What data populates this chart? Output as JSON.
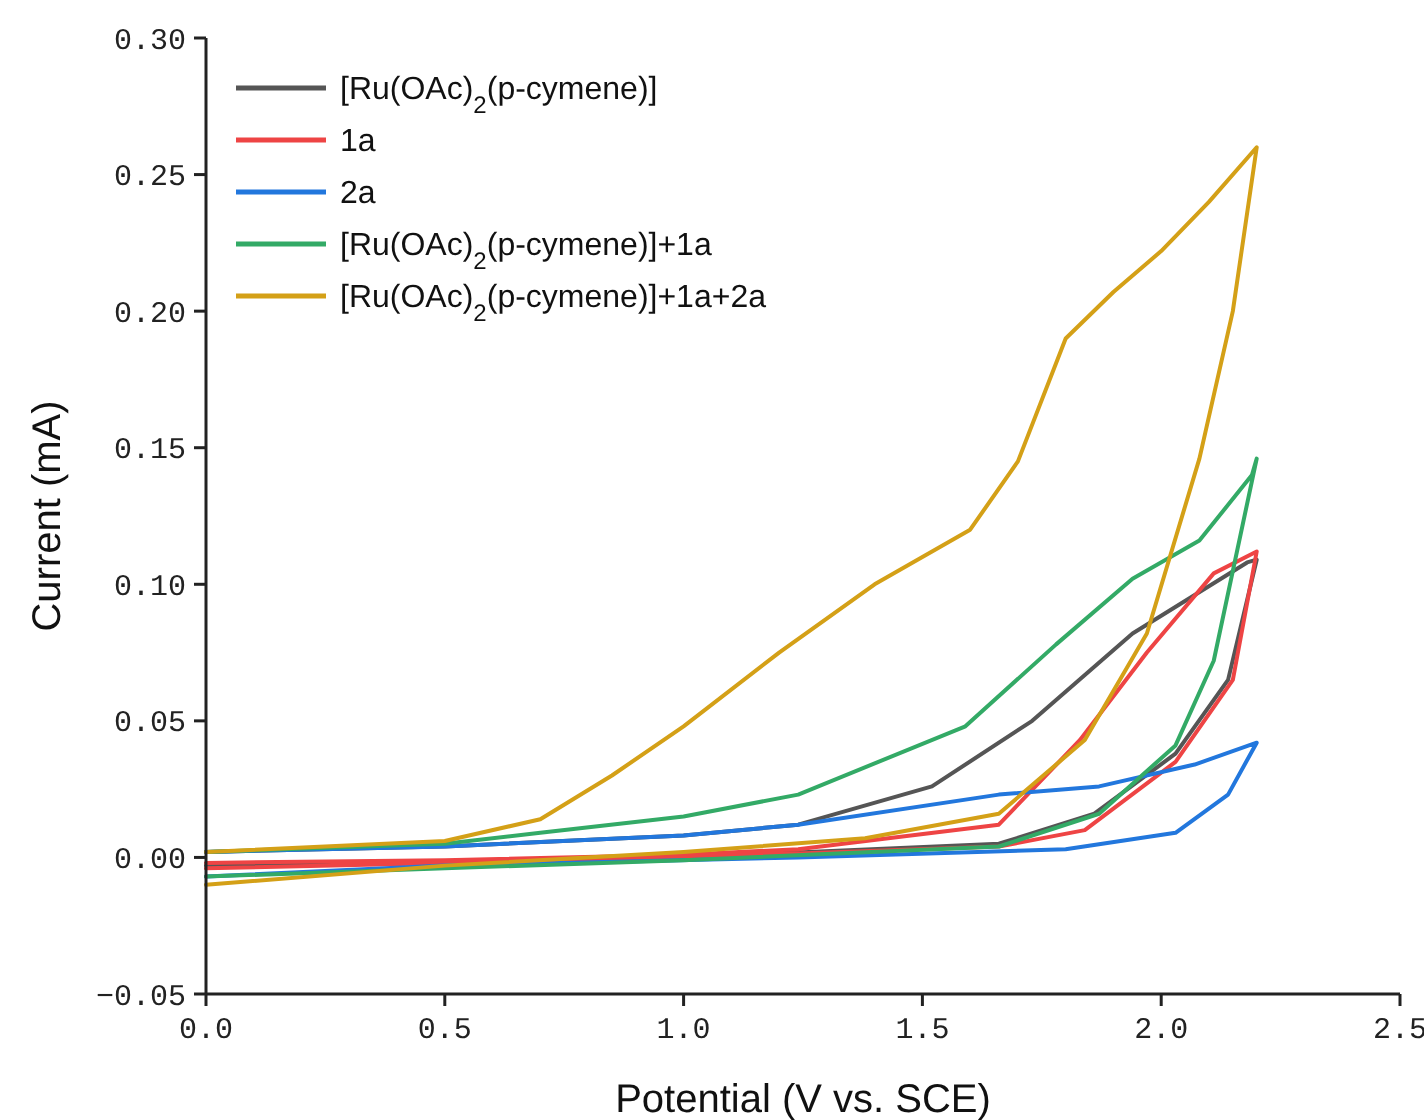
{
  "chart_data": {
    "type": "line",
    "xlabel": "Potential (V vs. SCE)",
    "ylabel": "Current (mA)",
    "xlim": [
      0,
      2.5
    ],
    "ylim": [
      -0.05,
      0.3
    ],
    "xticks": [
      {
        "value": 0,
        "label": "0.0"
      },
      0.5,
      {
        "value": 1,
        "label": "1.0"
      },
      1.5,
      {
        "value": 2,
        "label": "2.0"
      },
      2.5
    ],
    "yticks": [
      {
        "value": -0.05,
        "label": "−0.05"
      },
      {
        "value": 0,
        "label": "0.00"
      },
      0.05,
      {
        "value": 0.1,
        "label": "0.10"
      },
      0.15,
      {
        "value": 0.2,
        "label": "0.20"
      },
      0.25,
      {
        "value": 0.3,
        "label": "0.30"
      }
    ],
    "legend": "top left",
    "marker": "none",
    "line_style": "solid",
    "grid": false,
    "series": [
      {
        "name": "[Ru(OAc)$_{2}$(p-cymene)]",
        "color": "#555555",
        "x": [
          0,
          0.5,
          1.0,
          1.24,
          1.52,
          1.73,
          1.94,
          2.18,
          2.2,
          2.14,
          2.03,
          1.86,
          1.66,
          1.0,
          0.5,
          0
        ],
        "values": [
          0.002,
          0.004,
          0.008,
          0.012,
          0.026,
          0.05,
          0.082,
          0.108,
          0.109,
          0.065,
          0.038,
          0.016,
          0.005,
          0.0,
          -0.002,
          -0.003
        ]
      },
      {
        "name": "1a",
        "color": "#ee4444",
        "x": [
          0,
          0.5,
          1.0,
          1.24,
          1.66,
          1.83,
          1.97,
          2.11,
          2.2,
          2.15,
          2.03,
          1.84,
          1.66,
          1.0,
          0.5,
          0
        ],
        "values": [
          -0.002,
          -0.001,
          0.001,
          0.003,
          0.012,
          0.043,
          0.075,
          0.104,
          0.112,
          0.065,
          0.035,
          0.01,
          0.004,
          0.0,
          -0.002,
          -0.004
        ]
      },
      {
        "name": "2a",
        "color": "#2277dd",
        "x": [
          0,
          0.5,
          1.0,
          1.24,
          1.66,
          1.87,
          2.07,
          2.2,
          2.14,
          2.03,
          1.8,
          1.24,
          0.5,
          0
        ],
        "values": [
          0.002,
          0.004,
          0.008,
          0.012,
          0.023,
          0.026,
          0.034,
          0.042,
          0.023,
          0.009,
          0.003,
          0.0,
          -0.003,
          -0.007
        ]
      },
      {
        "name": "[Ru(OAc)$_{2}$(p-cymene)]+1a",
        "color": "#33aa66",
        "x": [
          0,
          0.5,
          0.7,
          1.0,
          1.24,
          1.59,
          1.78,
          1.94,
          2.08,
          2.19,
          2.2,
          2.11,
          2.03,
          1.87,
          1.66,
          1.0,
          0.5,
          0
        ],
        "values": [
          0.002,
          0.005,
          0.009,
          0.015,
          0.023,
          0.048,
          0.078,
          0.102,
          0.116,
          0.14,
          0.146,
          0.072,
          0.041,
          0.016,
          0.004,
          -0.001,
          -0.004,
          -0.007
        ]
      },
      {
        "name": "[Ru(OAc)$_{2}$(p-cymene)]+1a+2a",
        "color": "#d4a017",
        "x": [
          0,
          0.5,
          0.7,
          0.85,
          1.0,
          1.2,
          1.4,
          1.6,
          1.7,
          1.8,
          1.9,
          2.0,
          2.1,
          2.2,
          2.15,
          2.08,
          1.97,
          1.84,
          1.66,
          1.38,
          1.0,
          0.5,
          0
        ],
        "values": [
          0.002,
          0.006,
          0.014,
          0.03,
          0.048,
          0.075,
          0.1,
          0.12,
          0.145,
          0.19,
          0.207,
          0.222,
          0.24,
          0.26,
          0.2,
          0.146,
          0.082,
          0.043,
          0.016,
          0.007,
          0.002,
          -0.003,
          -0.01
        ]
      }
    ]
  }
}
